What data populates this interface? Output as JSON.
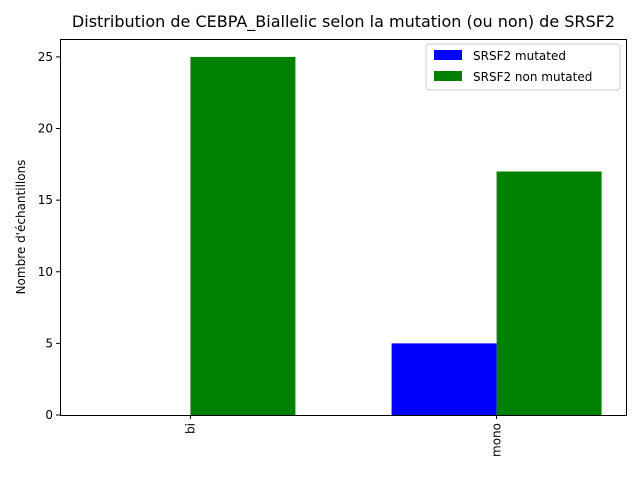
{
  "chart_data": {
    "type": "bar",
    "title": "Distribution de CEBPA_Biallelic selon la mutation (ou non) de SRSF2",
    "xlabel": "",
    "ylabel": "Nombre d'échantillons",
    "categories": [
      "bi",
      "mono"
    ],
    "series": [
      {
        "name": "SRSF2 mutated",
        "values": [
          0,
          5
        ],
        "color": "#0000ff"
      },
      {
        "name": "SRSF2 non mutated",
        "values": [
          25,
          17
        ],
        "color": "#008000"
      }
    ],
    "ylim": [
      0,
      26.25
    ],
    "yticks": [
      0,
      5,
      10,
      15,
      20,
      25
    ],
    "grid": false,
    "legend_position": "top-right",
    "xtick_rotation": 90
  }
}
